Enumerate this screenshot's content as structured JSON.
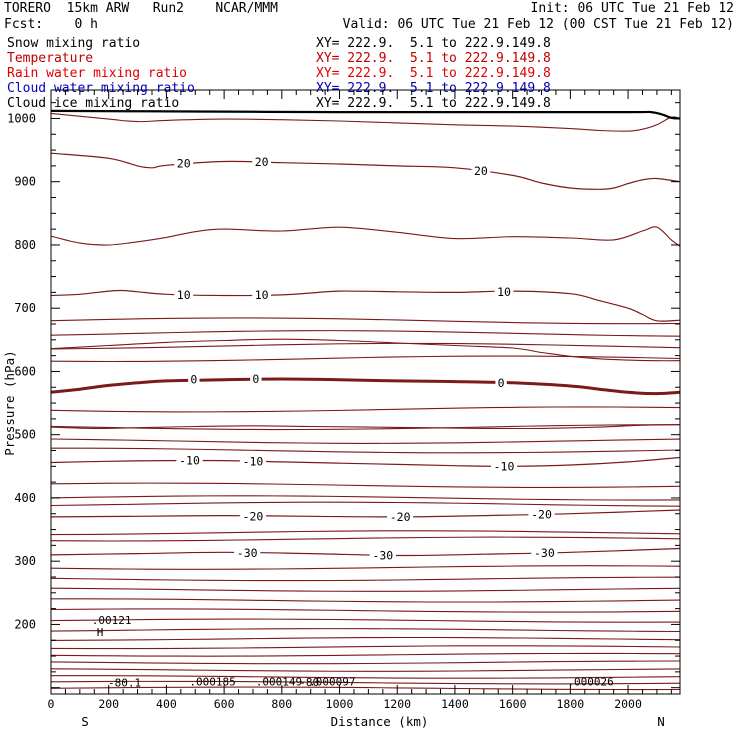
{
  "header": {
    "title_left": "TORERO  15km ARW   Run2    NCAR/MMM",
    "fcst": "Fcst:    0 h",
    "init": "Init: 06 UTC Tue 21 Feb 12",
    "valid": "Valid: 06 UTC Tue 21 Feb 12 (00 CST Tue 21 Feb 12)"
  },
  "legend": [
    {
      "name": "Snow mixing ratio",
      "xy": "XY= 222.9.  5.1 to 222.9.149.8",
      "color": "#000000"
    },
    {
      "name": "Temperature",
      "xy": "XY= 222.9.  5.1 to 222.9.149.8",
      "color": "#c00000"
    },
    {
      "name": "Rain water mixing ratio",
      "xy": "XY= 222.9.  5.1 to 222.9.149.8",
      "color": "#e00000"
    },
    {
      "name": "Cloud water mixing ratio",
      "xy": "XY= 222.9.  5.1 to 222.9.149.8",
      "color": "#0000c0"
    },
    {
      "name": "Cloud ice mixing ratio",
      "xy": "XY= 222.9.  5.1 to 222.9.149.8",
      "color": "#000000"
    }
  ],
  "chart_data": {
    "type": "line",
    "subtype": "vertical cross-section contour",
    "xlabel": "Distance (km)",
    "ylabel": "Pressure (hPa)",
    "xlim": [
      0,
      2180
    ],
    "ylim": [
      1045,
      90
    ],
    "x_ticks": [
      0,
      200,
      400,
      600,
      800,
      1000,
      1200,
      1400,
      1600,
      1800,
      2000
    ],
    "x_tick_labels": [
      "0",
      "200",
      "400",
      "600",
      "800",
      "1000",
      "1200",
      "1400",
      "1600",
      "1800",
      "2000"
    ],
    "y_ticks": [
      200,
      300,
      400,
      500,
      600,
      700,
      800,
      900,
      1000
    ],
    "y_tick_labels": [
      "200",
      "300",
      "400",
      "500",
      "600",
      "700",
      "800",
      "900",
      "1000"
    ],
    "endpoint_labels": {
      "left": "S",
      "right": "N"
    },
    "contour_color": "#7a1a1a",
    "ground_color": "#000000",
    "contours": [
      {
        "level": -30,
        "x": [
          0,
          300,
          600,
          900,
          1200,
          1500,
          1800,
          2180
        ],
        "p": [
          310,
          312,
          314,
          312,
          309,
          311,
          314,
          320
        ]
      },
      {
        "level": -20,
        "x": [
          0,
          300,
          600,
          900,
          1200,
          1500,
          1800,
          2180
        ],
        "p": [
          370,
          371,
          372,
          371,
          370,
          372,
          375,
          381
        ]
      },
      {
        "level": -10,
        "x": [
          0,
          200,
          400,
          600,
          800,
          1000,
          1200,
          1400,
          1600,
          1800,
          2000,
          2180
        ],
        "p": [
          456,
          458,
          459,
          459,
          457,
          455,
          453,
          451,
          450,
          452,
          457,
          464
        ]
      },
      {
        "level": 0,
        "x": [
          0,
          100,
          200,
          300,
          400,
          600,
          800,
          1000,
          1200,
          1400,
          1600,
          1800,
          1900,
          2000,
          2100,
          2180
        ],
        "p": [
          567,
          572,
          578,
          582,
          585,
          587,
          588,
          587,
          585,
          584,
          582,
          577,
          572,
          567,
          565,
          567
        ]
      },
      {
        "level": 10,
        "x": [
          0,
          100,
          200,
          250,
          300,
          400,
          600,
          800,
          900,
          1000,
          1200,
          1400,
          1600,
          1800,
          1900,
          2000,
          2050,
          2100,
          2180
        ],
        "p": [
          720,
          722,
          727,
          728,
          726,
          722,
          720,
          721,
          724,
          727,
          726,
          725,
          727,
          723,
          712,
          700,
          690,
          680,
          681
        ]
      },
      {
        "level": 20,
        "x": [
          0,
          200,
          300,
          350,
          400,
          600,
          800,
          1000,
          1200,
          1400,
          1600,
          1700,
          1800,
          1900,
          1950,
          2000,
          2050,
          2100,
          2180
        ],
        "p": [
          945,
          937,
          925,
          922,
          926,
          932,
          930,
          928,
          925,
          922,
          910,
          898,
          890,
          888,
          890,
          897,
          903,
          905,
          900
        ]
      }
    ],
    "unlabeled_upper_contours_p": [
      99,
      108,
      117,
      128,
      140,
      152,
      164,
      177,
      191,
      206,
      222,
      238,
      255,
      272,
      290,
      335,
      345,
      390,
      400,
      420,
      475,
      490,
      512,
      540,
      620,
      640,
      660,
      680
    ],
    "mid_contours": [
      {
        "x": [
          0,
          150,
          300,
          500,
          700,
          900,
          1100,
          1300,
          1500,
          1700,
          1900,
          2050,
          2180
        ],
        "p": [
          512,
          510,
          511,
          513,
          514,
          513,
          512,
          511,
          510,
          510,
          512,
          515,
          516
        ]
      },
      {
        "x": [
          0,
          200,
          400,
          600,
          800,
          1000,
          1200,
          1400,
          1600,
          1700,
          1800,
          1900,
          2000,
          2100,
          2180
        ],
        "p": [
          636,
          641,
          646,
          649,
          651,
          649,
          645,
          641,
          637,
          630,
          624,
          620,
          618,
          617,
          617
        ]
      },
      {
        "x": [
          0,
          100,
          200,
          300,
          400,
          500,
          600,
          800,
          1000,
          1200,
          1400,
          1600,
          1800,
          1950,
          2050,
          2100,
          2150,
          2180
        ],
        "p": [
          814,
          803,
          800,
          805,
          812,
          821,
          825,
          822,
          828,
          820,
          810,
          813,
          811,
          808,
          822,
          828,
          808,
          798
        ]
      },
      {
        "x": [
          0,
          200,
          300,
          400,
          600,
          800,
          1000,
          1200,
          1400,
          1600,
          1800,
          1900,
          2000,
          2050,
          2100,
          2150,
          2180
        ],
        "p": [
          1008,
          999,
          995,
          997,
          999,
          998,
          996,
          993,
          990,
          988,
          984,
          981,
          980,
          983,
          990,
          1002,
          1000
        ]
      }
    ],
    "ground": {
      "x": [
        0,
        500,
        1000,
        1500,
        2000,
        2080,
        2120,
        2150,
        2180
      ],
      "p": [
        1012,
        1011,
        1010,
        1010,
        1010,
        1010,
        1006,
        1001,
        1000
      ]
    },
    "contour_labels": [
      {
        "text": "-30",
        "x": 680,
        "p": 313
      },
      {
        "text": "-30",
        "x": 1150,
        "p": 309
      },
      {
        "text": "-30",
        "x": 1710,
        "p": 313
      },
      {
        "text": "-20",
        "x": 700,
        "p": 371
      },
      {
        "text": "-20",
        "x": 1210,
        "p": 370
      },
      {
        "text": "-20",
        "x": 1700,
        "p": 374
      },
      {
        "text": "-10",
        "x": 480,
        "p": 459
      },
      {
        "text": "-10",
        "x": 700,
        "p": 458
      },
      {
        "text": "-10",
        "x": 1570,
        "p": 450
      },
      {
        "text": "0",
        "x": 495,
        "p": 587
      },
      {
        "text": "0",
        "x": 710,
        "p": 588
      },
      {
        "text": "0",
        "x": 1560,
        "p": 582
      },
      {
        "text": "10",
        "x": 460,
        "p": 721
      },
      {
        "text": "10",
        "x": 730,
        "p": 721
      },
      {
        "text": "10",
        "x": 1570,
        "p": 726
      },
      {
        "text": "20",
        "x": 460,
        "p": 929
      },
      {
        "text": "20",
        "x": 730,
        "p": 931
      },
      {
        "text": "20",
        "x": 1490,
        "p": 917
      }
    ],
    "annotations": [
      {
        "text": "H",
        "x": 170,
        "p": 188
      },
      {
        "text": ".00121",
        "x": 210,
        "p": 207
      },
      {
        "text": "-80.1",
        "x": 255,
        "p": 108
      },
      {
        "text": ".000185",
        "x": 560,
        "p": 110
      },
      {
        "text": ".000149",
        "x": 790,
        "p": 110
      },
      {
        "text": "-80",
        "x": 895,
        "p": 109
      },
      {
        "text": ".000097",
        "x": 975,
        "p": 110
      },
      {
        "text": ".000026",
        "x": 1870,
        "p": 110
      }
    ]
  }
}
